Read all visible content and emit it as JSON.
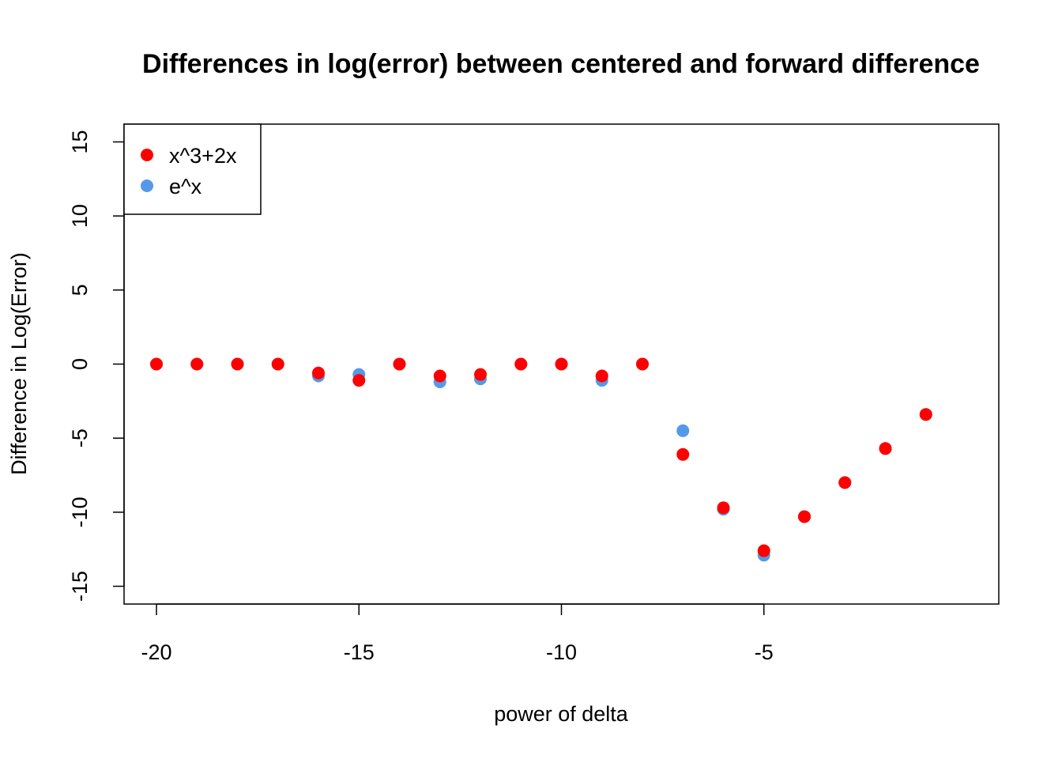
{
  "chart_data": {
    "type": "scatter",
    "title": "Differences in log(error) between centered and forward difference",
    "xlabel": "power of delta",
    "ylabel": "Difference in Log(Error)",
    "xlim": [
      -20.8,
      0.8
    ],
    "ylim": [
      -16.2,
      16.2
    ],
    "x_ticks": [
      -20,
      -15,
      -10,
      -5
    ],
    "y_ticks": [
      -15,
      -10,
      -5,
      0,
      5,
      10,
      15
    ],
    "grid": false,
    "legend_position": "top-left",
    "series": [
      {
        "name": "e^x",
        "color": "#5599e8",
        "x": [
          -20,
          -19,
          -18,
          -17,
          -16,
          -15,
          -14,
          -13,
          -12,
          -11,
          -10,
          -9,
          -8,
          -7,
          -6,
          -5,
          -4,
          -3,
          -2,
          -1
        ],
        "y": [
          0,
          0,
          0,
          0,
          -0.8,
          -0.7,
          0,
          -1.2,
          -1.0,
          0,
          0,
          -1.1,
          0,
          -4.5,
          -9.8,
          -12.9,
          -10.3,
          -8.0,
          -5.7,
          -3.4
        ]
      },
      {
        "name": "x^3+2x",
        "color": "#ff0000",
        "x": [
          -20,
          -19,
          -18,
          -17,
          -16,
          -15,
          -14,
          -13,
          -12,
          -11,
          -10,
          -9,
          -8,
          -7,
          -6,
          -5,
          -4,
          -3,
          -2,
          -1
        ],
        "y": [
          0,
          0,
          0,
          0,
          -0.6,
          -1.1,
          0,
          -0.8,
          -0.7,
          0,
          0,
          -0.8,
          0,
          -6.1,
          -9.7,
          -12.6,
          -10.3,
          -8.0,
          -5.7,
          -3.4
        ]
      }
    ],
    "legend": [
      {
        "label": "x^3+2x",
        "color": "#ff0000"
      },
      {
        "label": "e^x",
        "color": "#5599e8"
      }
    ]
  }
}
